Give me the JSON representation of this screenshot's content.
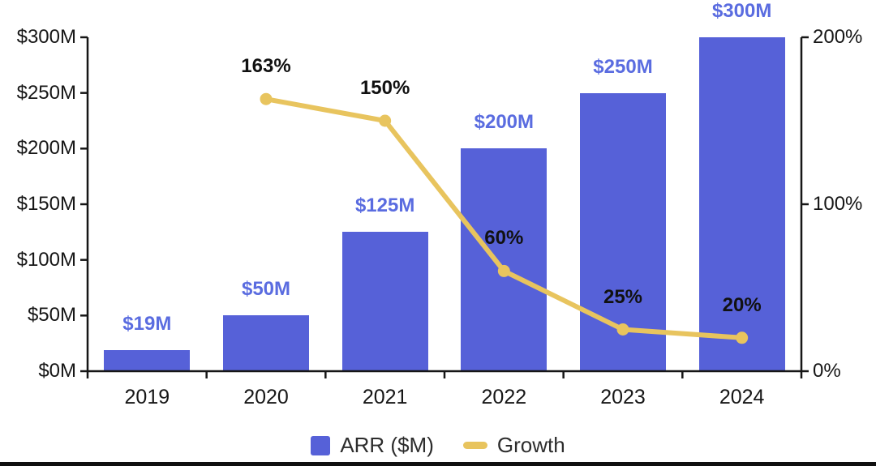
{
  "chart_data": {
    "type": "bar",
    "title": "",
    "categories": [
      "2019",
      "2020",
      "2021",
      "2022",
      "2023",
      "2024"
    ],
    "series": [
      {
        "name": "ARR ($M)",
        "type": "bar",
        "axis": "left",
        "color": "#5661d8",
        "label_color": "#5a6ce0",
        "values": [
          19,
          50,
          125,
          200,
          250,
          300
        ],
        "labels": [
          "$19M",
          "$50M",
          "$125M",
          "$200M",
          "$250M",
          "$300M"
        ]
      },
      {
        "name": "Growth",
        "type": "line",
        "axis": "right",
        "color": "#e8c45e",
        "label_color": "#111111",
        "values": [
          null,
          163,
          150,
          60,
          25,
          20
        ],
        "labels": [
          null,
          "163%",
          "150%",
          "60%",
          "25%",
          "20%"
        ]
      }
    ],
    "left_axis": {
      "min": 0,
      "max": 300,
      "ticks": [
        "$0M",
        "$50M",
        "$100M",
        "$150M",
        "$200M",
        "$250M",
        "$300M"
      ]
    },
    "right_axis": {
      "min": 0,
      "max": 200,
      "ticks": [
        "0%",
        "100%",
        "200%"
      ]
    },
    "legend": [
      {
        "label": "ARR ($M)",
        "color": "#5661d8",
        "marker": "square"
      },
      {
        "label": "Growth",
        "color": "#e8c45e",
        "marker": "line"
      }
    ],
    "grid": false,
    "legend_position": "bottom"
  },
  "colors": {
    "background": "#ffffff",
    "axis": "#161616",
    "bar": "#5661d8",
    "line": "#e8c45e"
  }
}
